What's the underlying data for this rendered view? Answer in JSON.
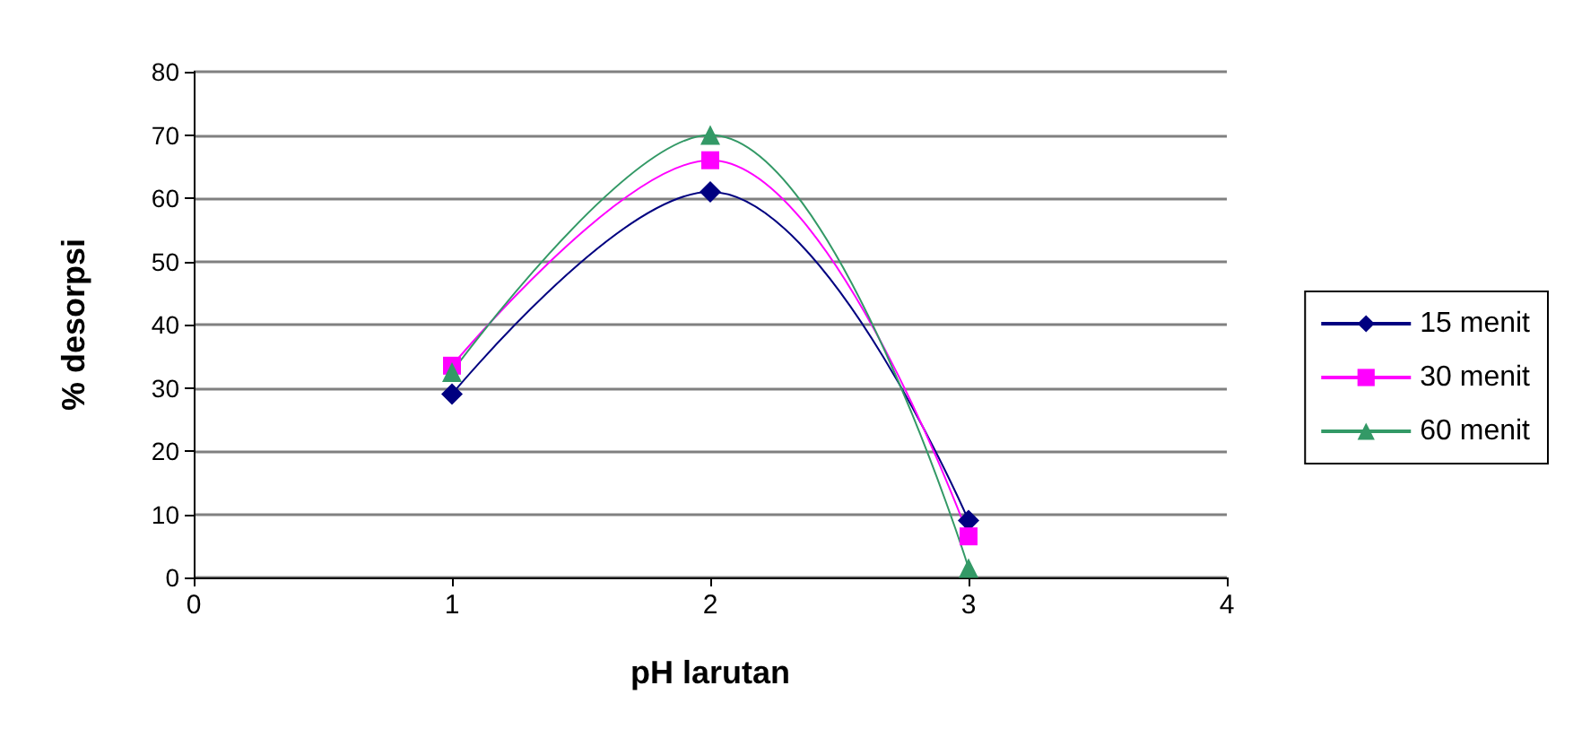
{
  "chart_data": {
    "type": "line",
    "xlabel": "pH larutan",
    "ylabel": "% desorpsi",
    "xlim": [
      0,
      4
    ],
    "xticks": [
      0,
      1,
      2,
      3,
      4
    ],
    "ylim": [
      0,
      80
    ],
    "yticks": [
      0,
      10,
      20,
      30,
      40,
      50,
      60,
      70,
      80
    ],
    "grid": "y",
    "legend": "right",
    "series": [
      {
        "name": "15 menit",
        "color": "#000080",
        "marker": "diamond",
        "x": [
          1,
          2,
          3
        ],
        "values": [
          29,
          61,
          9
        ]
      },
      {
        "name": "30 menit",
        "color": "#ff00ff",
        "marker": "square",
        "x": [
          1,
          2,
          3
        ],
        "values": [
          33.5,
          66,
          6.5
        ]
      },
      {
        "name": "60 menit",
        "color": "#339966",
        "marker": "triangle",
        "x": [
          1,
          2,
          3
        ],
        "values": [
          32.5,
          70,
          1.5
        ]
      }
    ]
  }
}
